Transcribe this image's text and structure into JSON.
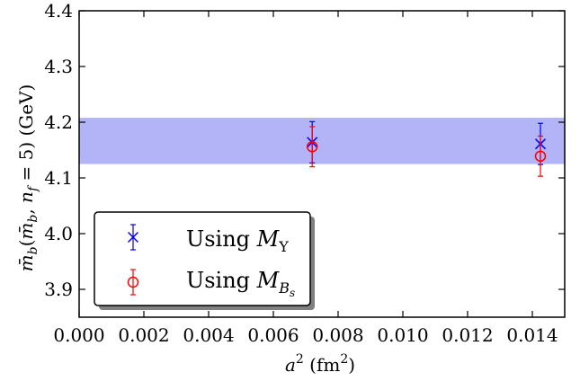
{
  "chart_data": {
    "type": "scatter",
    "title": "",
    "xlabel": {
      "base": "a",
      "sup": "2",
      "unit_pre": " (fm",
      "unit_sup": "2",
      "unit_post": ")"
    },
    "ylabel": {
      "text": "m̄_b(m̄_b, n_f = 5) (GeV)"
    },
    "xlim": [
      0.0,
      0.015
    ],
    "ylim": [
      3.85,
      4.4
    ],
    "xticks": [
      0.0,
      0.002,
      0.004,
      0.006,
      0.008,
      0.01,
      0.012,
      0.014
    ],
    "xtick_labels": [
      "0.000",
      "0.002",
      "0.004",
      "0.006",
      "0.008",
      "0.010",
      "0.012",
      "0.014"
    ],
    "yticks": [
      3.9,
      4.0,
      4.1,
      4.2,
      4.3,
      4.4
    ],
    "ytick_labels": [
      "3.9",
      "4.0",
      "4.1",
      "4.2",
      "4.3",
      "4.4"
    ],
    "band": {
      "y_low": 4.125,
      "y_high": 4.208,
      "color": "#b3b3f7"
    },
    "series": [
      {
        "name": "Using M_Υ",
        "legend_prefix": "Using ",
        "legend_symbol": "M",
        "legend_sub": "Υ",
        "marker": "x",
        "color": "#0000ff",
        "points": [
          {
            "x": 0.0072,
            "y": 4.164,
            "err": 0.037
          },
          {
            "x": 0.01425,
            "y": 4.161,
            "err": 0.037
          }
        ]
      },
      {
        "name": "Using M_Bs",
        "legend_prefix": "Using ",
        "legend_symbol": "M",
        "legend_sub": "B",
        "legend_subsub": "s",
        "marker": "circle",
        "color": "#ff0000",
        "points": [
          {
            "x": 0.0072,
            "y": 4.156,
            "err": 0.036
          },
          {
            "x": 0.01425,
            "y": 4.139,
            "err": 0.036
          }
        ]
      }
    ],
    "legend_position": "lower-left"
  }
}
